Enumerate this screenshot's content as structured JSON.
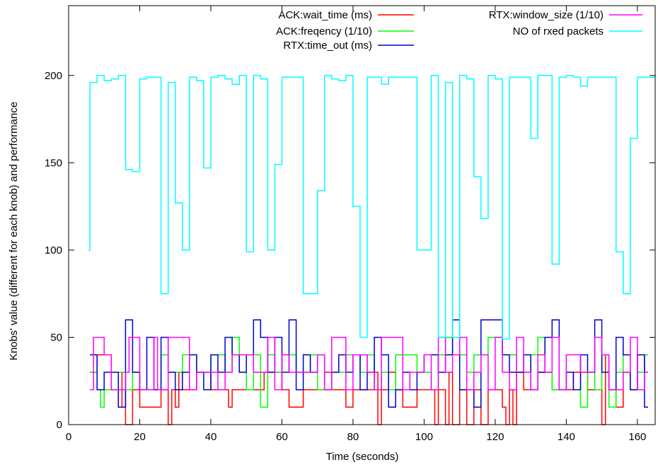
{
  "chart_data": {
    "type": "line",
    "step": true,
    "xlabel": "Time (seconds)",
    "ylabel": "Knobs' value (different for each knob) and performance",
    "xlim": [
      0,
      165
    ],
    "ylim": [
      0,
      240
    ],
    "xticks": [
      0,
      20,
      40,
      60,
      80,
      100,
      120,
      140,
      160
    ],
    "yticks": [
      0,
      50,
      100,
      150,
      200
    ],
    "grid": false,
    "legend_position": "top",
    "series": [
      {
        "name": "ACK:wait_time (ms)",
        "color": "#ff0000",
        "x": [
          6,
          8,
          12,
          14,
          15,
          16,
          18,
          20,
          26,
          28,
          29,
          30,
          31,
          32,
          36,
          40,
          45,
          46,
          51,
          55,
          60,
          62,
          66,
          72,
          74,
          78,
          80,
          86,
          87,
          88,
          90,
          92,
          94,
          98,
          102,
          103,
          104,
          106,
          107,
          108,
          110,
          112,
          114,
          116,
          118,
          120,
          122,
          123,
          124,
          125,
          126,
          128,
          132,
          136,
          142,
          146,
          150,
          151,
          152,
          154,
          156,
          158,
          160,
          162
        ],
        "y": [
          30,
          40,
          20,
          10,
          30,
          0,
          20,
          10,
          20,
          0,
          20,
          10,
          30,
          20,
          30,
          20,
          10,
          20,
          20,
          30,
          20,
          10,
          20,
          30,
          20,
          10,
          20,
          30,
          0,
          20,
          30,
          20,
          10,
          20,
          20,
          0,
          20,
          0,
          30,
          0,
          20,
          0,
          20,
          0,
          20,
          20,
          10,
          0,
          20,
          0,
          30,
          20,
          30,
          20,
          30,
          20,
          0,
          40,
          20,
          10,
          30,
          20,
          40,
          30
        ]
      },
      {
        "name": "ACK:freqency (1/10)",
        "color": "#00ff00",
        "x": [
          6,
          8,
          9,
          10,
          14,
          16,
          18,
          20,
          26,
          28,
          32,
          36,
          40,
          44,
          46,
          48,
          50,
          52,
          54,
          56,
          58,
          60,
          64,
          68,
          70,
          74,
          78,
          82,
          84,
          86,
          88,
          90,
          92,
          98,
          102,
          104,
          106,
          108,
          112,
          114,
          118,
          122,
          126,
          130,
          132,
          134,
          136,
          140,
          144,
          146,
          148,
          150,
          152,
          154,
          156,
          158,
          160,
          162
        ],
        "y": [
          30,
          20,
          10,
          20,
          30,
          20,
          30,
          20,
          40,
          30,
          40,
          30,
          40,
          30,
          50,
          30,
          20,
          40,
          10,
          40,
          30,
          40,
          30,
          40,
          20,
          30,
          40,
          30,
          40,
          20,
          30,
          20,
          40,
          30,
          20,
          40,
          50,
          40,
          30,
          40,
          50,
          40,
          30,
          40,
          50,
          30,
          20,
          40,
          10,
          30,
          20,
          40,
          10,
          30,
          40,
          20,
          30,
          40
        ]
      },
      {
        "name": "RTX:time_out (ms)",
        "color": "#0000cc",
        "x": [
          6,
          8,
          10,
          14,
          16,
          18,
          20,
          22,
          24,
          26,
          28,
          30,
          32,
          34,
          36,
          38,
          40,
          42,
          44,
          46,
          48,
          50,
          52,
          54,
          56,
          58,
          60,
          62,
          64,
          66,
          68,
          70,
          72,
          74,
          76,
          78,
          80,
          82,
          84,
          86,
          88,
          90,
          92,
          94,
          96,
          98,
          100,
          104,
          106,
          108,
          110,
          114,
          116,
          122,
          124,
          128,
          130,
          132,
          134,
          136,
          138,
          140,
          142,
          144,
          146,
          148,
          150,
          152,
          154,
          156,
          158,
          160,
          162
        ],
        "y": [
          40,
          20,
          30,
          10,
          60,
          30,
          20,
          50,
          20,
          50,
          30,
          20,
          30,
          40,
          30,
          20,
          40,
          30,
          50,
          40,
          30,
          40,
          60,
          50,
          30,
          50,
          30,
          60,
          20,
          40,
          30,
          40,
          20,
          30,
          40,
          30,
          40,
          20,
          30,
          50,
          40,
          10,
          20,
          30,
          20,
          30,
          40,
          30,
          40,
          60,
          20,
          10,
          60,
          40,
          30,
          40,
          20,
          30,
          50,
          60,
          20,
          30,
          20,
          40,
          30,
          60,
          30,
          20,
          50,
          40,
          20,
          40,
          10
        ]
      },
      {
        "name": "RTX:window_size (1/10)",
        "color": "#ff00ff",
        "x": [
          6,
          7,
          10,
          12,
          16,
          17,
          20,
          24,
          25,
          28,
          34,
          36,
          42,
          44,
          46,
          52,
          56,
          58,
          60,
          62,
          70,
          72,
          74,
          78,
          80,
          84,
          86,
          88,
          94,
          96,
          100,
          102,
          104,
          106,
          108,
          110,
          112,
          114,
          116,
          118,
          120,
          122,
          124,
          126,
          128,
          130,
          132,
          134,
          136,
          138,
          140,
          144,
          148,
          150,
          152,
          156,
          158,
          160,
          162
        ],
        "y": [
          20,
          50,
          40,
          20,
          30,
          50,
          20,
          50,
          20,
          50,
          20,
          30,
          20,
          30,
          40,
          30,
          50,
          20,
          40,
          30,
          40,
          20,
          50,
          20,
          40,
          30,
          20,
          50,
          20,
          30,
          40,
          20,
          50,
          30,
          40,
          50,
          20,
          30,
          40,
          20,
          50,
          30,
          20,
          50,
          30,
          20,
          40,
          30,
          50,
          20,
          40,
          30,
          50,
          40,
          20,
          30,
          50,
          20,
          30
        ]
      },
      {
        "name": "NO of rxed packets",
        "color": "#00ffff",
        "x": [
          5.6,
          6,
          8,
          10,
          12,
          14,
          16,
          18,
          20,
          22,
          26,
          28,
          30,
          32,
          34,
          36,
          38,
          40,
          42,
          44,
          46,
          48,
          50,
          52,
          54,
          56,
          58,
          60,
          62,
          66,
          70,
          72,
          74,
          76,
          78,
          80,
          82,
          84,
          86,
          88,
          90,
          92,
          94,
          98,
          102,
          104,
          106,
          108,
          110,
          112,
          114,
          116,
          118,
          120,
          122,
          124,
          126,
          128,
          130,
          132,
          134,
          136,
          138,
          140,
          142,
          144,
          146,
          148,
          150,
          154,
          156,
          158,
          160,
          162,
          164
        ],
        "y": [
          100,
          196,
          200,
          197,
          198,
          200,
          146,
          145,
          198,
          199,
          75,
          196,
          127,
          100,
          199,
          197,
          147,
          199,
          200,
          198,
          195,
          200,
          99,
          200,
          198,
          100,
          149,
          199,
          199,
          75,
          134,
          200,
          198,
          197,
          200,
          125,
          50,
          199,
          199,
          195,
          199,
          199,
          199,
          100,
          200,
          50,
          196,
          50,
          200,
          198,
          142,
          118,
          200,
          198,
          49,
          199,
          199,
          199,
          164,
          200,
          200,
          92,
          199,
          200,
          199,
          194,
          199,
          199,
          199,
          99,
          75,
          164,
          199,
          199,
          199
        ]
      }
    ]
  }
}
